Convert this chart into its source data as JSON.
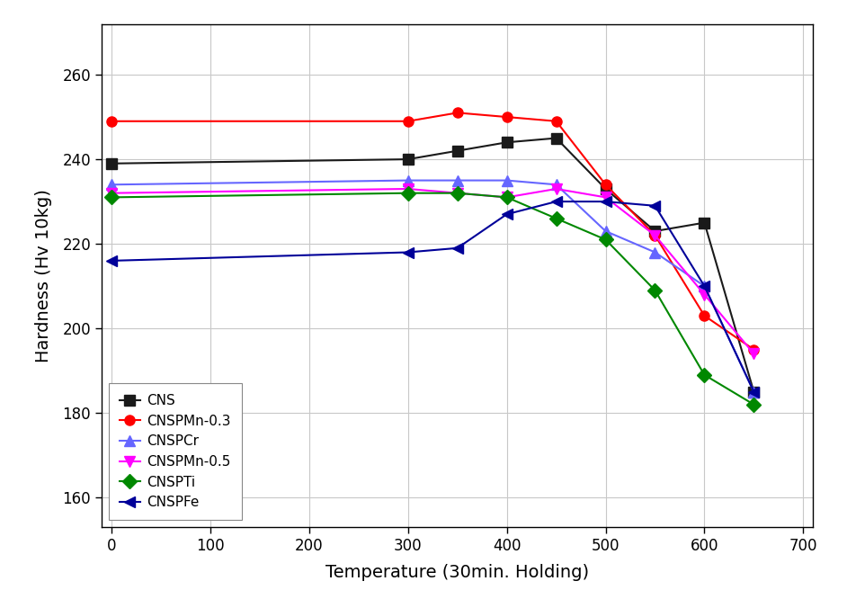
{
  "series": [
    {
      "label": "CNS",
      "color": "#1a1a1a",
      "marker": "s",
      "x": [
        0,
        300,
        350,
        400,
        450,
        500,
        550,
        600,
        650
      ],
      "y": [
        239,
        240,
        242,
        244,
        245,
        233,
        223,
        225,
        185
      ]
    },
    {
      "label": "CNSPMn-0.3",
      "color": "#ff0000",
      "marker": "o",
      "x": [
        0,
        300,
        350,
        400,
        450,
        500,
        550,
        600,
        650
      ],
      "y": [
        249,
        249,
        251,
        250,
        249,
        234,
        222,
        203,
        195
      ]
    },
    {
      "label": "CNSPCr",
      "color": "#6666ff",
      "marker": "^",
      "x": [
        0,
        300,
        350,
        400,
        450,
        500,
        550,
        600,
        650
      ],
      "y": [
        234,
        235,
        235,
        235,
        234,
        223,
        218,
        210,
        185
      ]
    },
    {
      "label": "CNSPMn-0.5",
      "color": "#ff00ff",
      "marker": "v",
      "x": [
        0,
        300,
        350,
        400,
        450,
        500,
        550,
        600,
        650
      ],
      "y": [
        232,
        233,
        232,
        231,
        233,
        231,
        222,
        208,
        194
      ]
    },
    {
      "label": "CNSPTi",
      "color": "#008800",
      "marker": "D",
      "x": [
        0,
        300,
        350,
        400,
        450,
        500,
        550,
        600,
        650
      ],
      "y": [
        231,
        232,
        232,
        231,
        226,
        221,
        209,
        189,
        182
      ]
    },
    {
      "label": "CNSPFe",
      "color": "#000099",
      "marker": "<",
      "x": [
        0,
        300,
        350,
        400,
        450,
        500,
        550,
        600,
        650
      ],
      "y": [
        216,
        218,
        219,
        227,
        230,
        230,
        229,
        210,
        185
      ]
    }
  ],
  "xlabel": "Temperature (30min. Holding)",
  "ylabel": "Hardness (Hv 10kg)",
  "xlim": [
    -10,
    710
  ],
  "ylim": [
    153,
    272
  ],
  "xticks": [
    0,
    100,
    200,
    300,
    400,
    500,
    600,
    700
  ],
  "yticks": [
    160,
    180,
    200,
    220,
    240,
    260
  ],
  "grid": true,
  "legend_loc": "lower left",
  "background_color": "#ffffff",
  "linewidth": 1.5,
  "markersize": 8,
  "figsize": [
    9.42,
    6.66
  ],
  "dpi": 100
}
